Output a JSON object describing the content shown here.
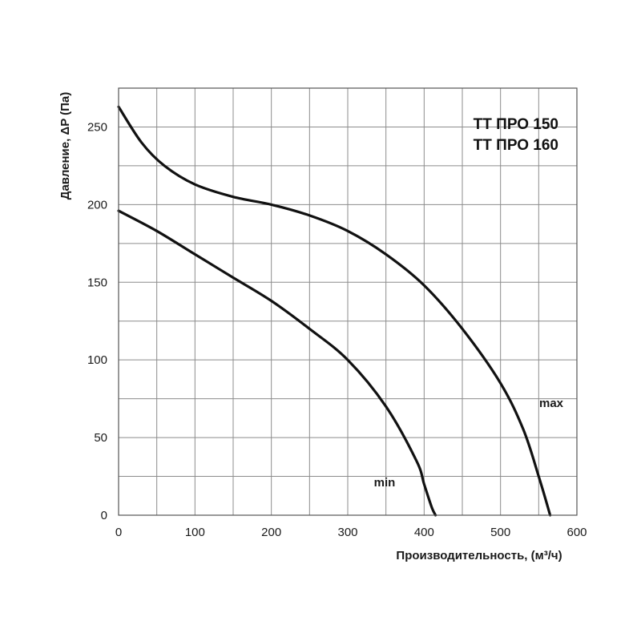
{
  "chart_data": {
    "type": "line",
    "xlabel": "Производительность, (м³/ч)",
    "ylabel": "Давление, ΔP (Па)",
    "xlim": [
      0,
      600
    ],
    "ylim": [
      0,
      275
    ],
    "x_ticks": [
      "0",
      "100",
      "200",
      "300",
      "400",
      "500",
      "600"
    ],
    "y_ticks": [
      "0",
      "50",
      "100",
      "150",
      "200",
      "250"
    ],
    "grid": true,
    "models": [
      "ТТ ПРО 150",
      "ТТ ПРО 160"
    ],
    "series": [
      {
        "name": "max",
        "x": [
          0,
          30,
          60,
          100,
          150,
          200,
          250,
          300,
          350,
          400,
          450,
          500,
          530,
          550,
          565
        ],
        "y": [
          263,
          240,
          225,
          213,
          205,
          200,
          193,
          183,
          168,
          148,
          120,
          85,
          55,
          25,
          0
        ]
      },
      {
        "name": "min",
        "x": [
          0,
          50,
          100,
          150,
          200,
          250,
          300,
          350,
          390,
          400,
          410,
          415
        ],
        "y": [
          196,
          183,
          168,
          153,
          138,
          120,
          100,
          70,
          35,
          20,
          5,
          0
        ]
      }
    ]
  }
}
